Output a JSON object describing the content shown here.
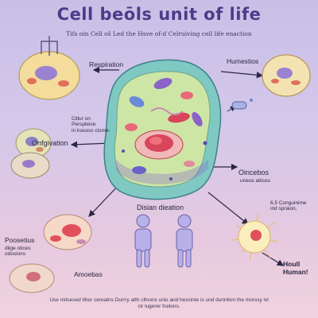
{
  "title": "Cell beōls unit of life",
  "subtitle": "Tifs oin Cell oš Led the Hsve of-ıf Celruiving cell life enaction",
  "labels": {
    "respiration": "Respiration",
    "humestios": "Humestios",
    "cillur": "Cillur on\nPerspleice\nin lrocess clome-",
    "onfgivation": "Onfgivation",
    "oincebos": "Oincebos",
    "oincebos_sub": "unece atiices",
    "disian": "Disian dieation",
    "conguinime": "6,5 Conguinime\nind spraion,",
    "poosetius": "Poosetius",
    "poosetius_sub": "diige otices\nodosions",
    "amoebas": "Amoebas",
    "houll": "Houll\nHuman!"
  },
  "footer": "Use mitsesed tiher cereatns Durrry atth cltnons unis and hexcinte is und dunntion the morssy ivl cir lugerer fcelons.",
  "colors": {
    "title": "#4b3c8a",
    "cell_membrane": "#7fc9c2",
    "cytoplasm": "#cde6a6",
    "nucleus": "#d9455a",
    "mitochondria": "#8a62c8"
  }
}
